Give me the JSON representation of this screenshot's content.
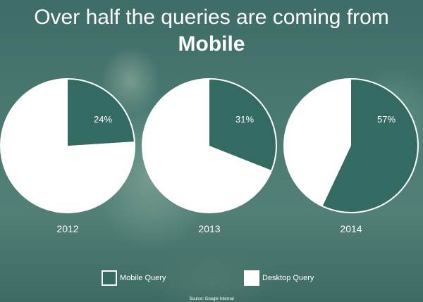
{
  "title": {
    "line1": "Over half the queries are coming from",
    "line2": "Mobile"
  },
  "colors": {
    "mobile": "#336b63",
    "desktop": "#ffffff",
    "label": "#ffffff"
  },
  "chart_data": {
    "type": "pie",
    "charts": [
      {
        "year": "2012",
        "mobile": 24,
        "desktop": 76,
        "mobile_label": "24%"
      },
      {
        "year": "2013",
        "mobile": 31,
        "desktop": 69,
        "mobile_label": "31%"
      },
      {
        "year": "2014",
        "mobile": 57,
        "desktop": 43,
        "mobile_label": "57%"
      }
    ],
    "legend": [
      "Mobile Query",
      "Desktop Query"
    ]
  },
  "legend": {
    "mobile": "Mobile Query",
    "desktop": "Desktop Query"
  },
  "source": "Source: Google Internal"
}
